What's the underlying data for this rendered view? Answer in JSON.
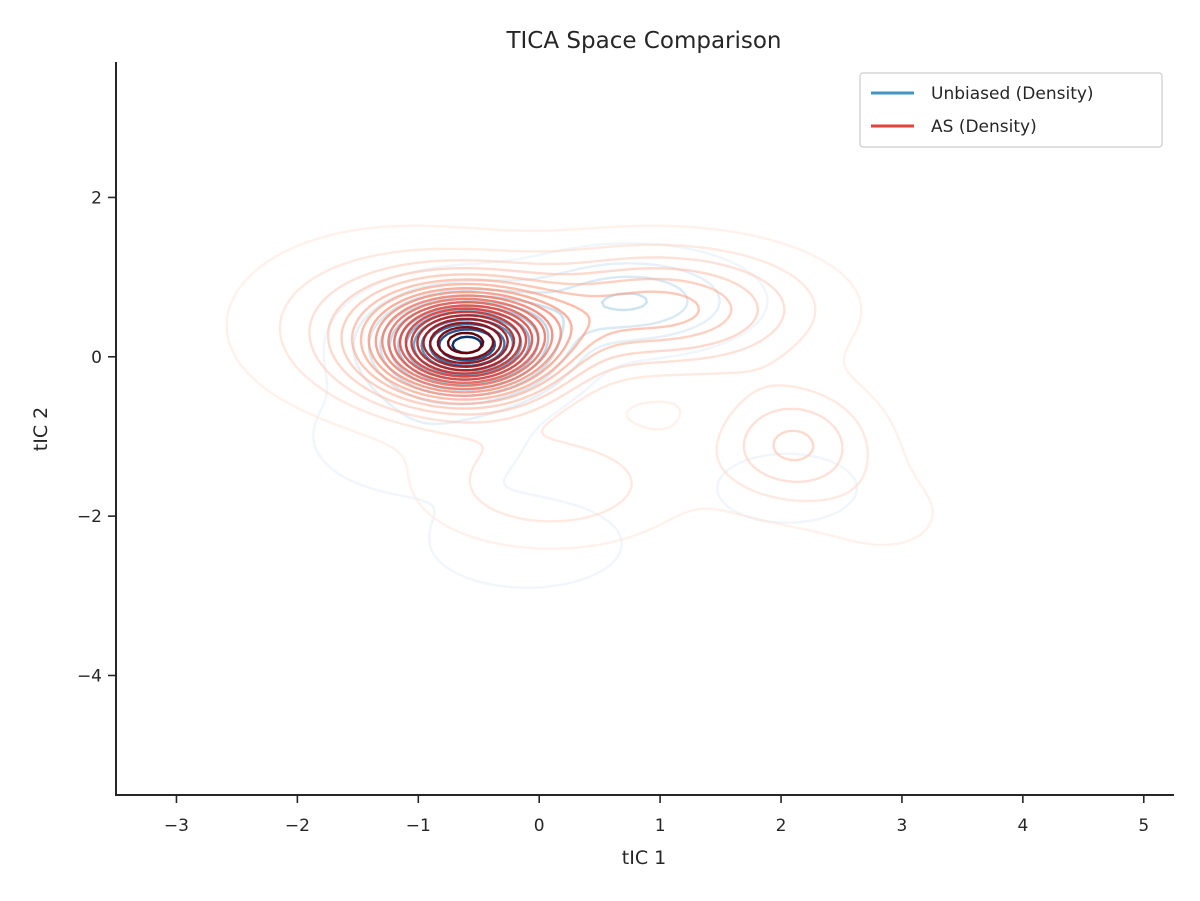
{
  "chart_data": {
    "type": "contour",
    "title": "TICA Space Comparison",
    "xlabel": "tIC 1",
    "ylabel": "tIC 2",
    "xlim": [
      -3.5,
      5.25
    ],
    "ylim": [
      -5.5,
      3.7
    ],
    "xticks": [
      -3,
      -2,
      -1,
      0,
      1,
      2,
      3,
      4,
      5
    ],
    "yticks": [
      -4,
      -2,
      0,
      2
    ],
    "xtick_labels": [
      "−3",
      "−2",
      "−1",
      "0",
      "1",
      "2",
      "3",
      "4",
      "5"
    ],
    "ytick_labels": [
      "−4",
      "−2",
      "0",
      "2"
    ],
    "grid": false,
    "legend": "top-right",
    "series": [
      {
        "name": "Unbiased (Density)",
        "color": "#4393c3",
        "colormap": "Blues",
        "levels": 12,
        "components": [
          {
            "x": -0.6,
            "y": 0.15,
            "sx": 0.45,
            "sy": 0.38,
            "w": 1.0
          },
          {
            "x": 0.75,
            "y": 0.7,
            "sx": 0.55,
            "sy": 0.35,
            "w": 0.3
          },
          {
            "x": -0.1,
            "y": -2.35,
            "sx": 0.5,
            "sy": 0.35,
            "w": 0.12
          },
          {
            "x": 2.05,
            "y": -1.65,
            "sx": 0.4,
            "sy": 0.3,
            "w": 0.1
          },
          {
            "x": -1.0,
            "y": -1.0,
            "sx": 0.6,
            "sy": 0.5,
            "w": 0.1
          }
        ]
      },
      {
        "name": "AS (Density)",
        "color": "#e6413b",
        "colormap": "Reds",
        "levels": 20,
        "components": [
          {
            "x": -0.6,
            "y": 0.15,
            "sx": 0.5,
            "sy": 0.45,
            "w": 1.0
          },
          {
            "x": 1.0,
            "y": 0.6,
            "sx": 0.8,
            "sy": 0.5,
            "w": 0.35
          },
          {
            "x": 2.1,
            "y": -1.1,
            "sx": 0.45,
            "sy": 0.5,
            "w": 0.22
          },
          {
            "x": 0.1,
            "y": -1.6,
            "sx": 0.7,
            "sy": 0.5,
            "w": 0.15
          },
          {
            "x": -1.2,
            "y": 0.4,
            "sx": 0.8,
            "sy": 0.7,
            "w": 0.18
          },
          {
            "x": 2.9,
            "y": -2.0,
            "sx": 0.5,
            "sy": 0.5,
            "w": 0.05
          }
        ]
      }
    ]
  }
}
